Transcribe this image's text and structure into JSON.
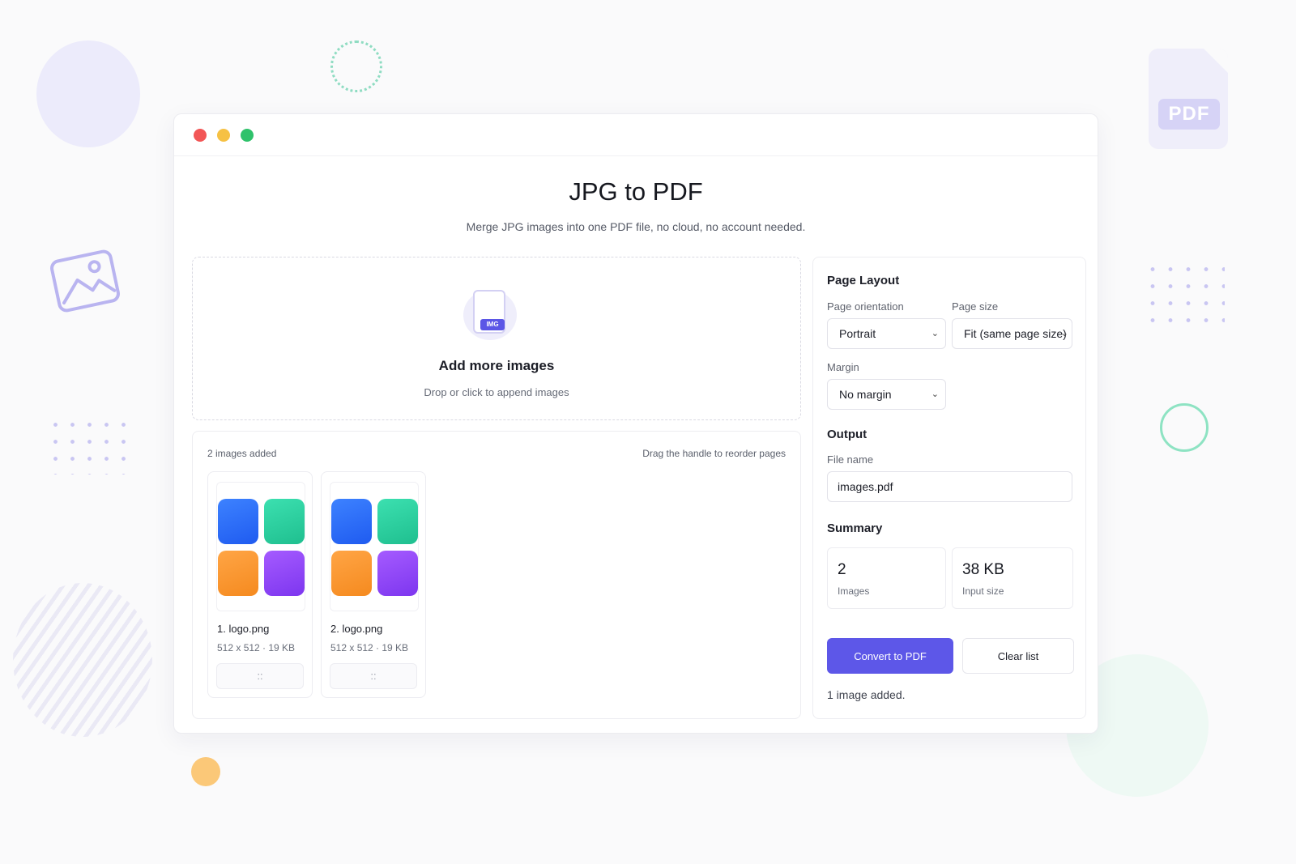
{
  "decor": {
    "pdf_badge": "PDF"
  },
  "window": {
    "controls": [
      "close",
      "minimize",
      "maximize"
    ]
  },
  "header": {
    "title": "JPG to PDF",
    "subtitle": "Merge JPG images into one PDF file, no cloud, no account needed."
  },
  "dropzone": {
    "icon_badge": "IMG",
    "title": "Add more images",
    "subtitle": "Drop or click to append images"
  },
  "image_list": {
    "count_label": "2 images added",
    "hint": "Drag the handle to reorder pages",
    "items": [
      {
        "name": "1. logo.png",
        "meta": "512 x 512 · 19 KB",
        "handle": "::"
      },
      {
        "name": "2. logo.png",
        "meta": "512 x 512 · 19 KB",
        "handle": "::"
      }
    ],
    "thumb_colors": [
      "#2f6cf8",
      "#2bd0a0",
      "#f8962f",
      "#8f45f7"
    ]
  },
  "settings": {
    "page_layout": {
      "title": "Page Layout",
      "orientation_label": "Page orientation",
      "orientation_value": "Portrait",
      "page_size_label": "Page size",
      "page_size_value": "Fit (same page size)",
      "margin_label": "Margin",
      "margin_value": "No margin"
    },
    "output": {
      "title": "Output",
      "file_name_label": "File name",
      "file_name_value": "images.pdf"
    },
    "summary": {
      "title": "Summary",
      "images_value": "2",
      "images_caption": "Images",
      "size_value": "38 KB",
      "size_caption": "Input size"
    },
    "actions": {
      "convert_label": "Convert to PDF",
      "clear_label": "Clear list"
    },
    "status": "1 image added."
  },
  "colors": {
    "accent": "#5d57e8",
    "close": "#f25656",
    "minimize": "#f6c144",
    "maximize": "#2fc26b"
  }
}
